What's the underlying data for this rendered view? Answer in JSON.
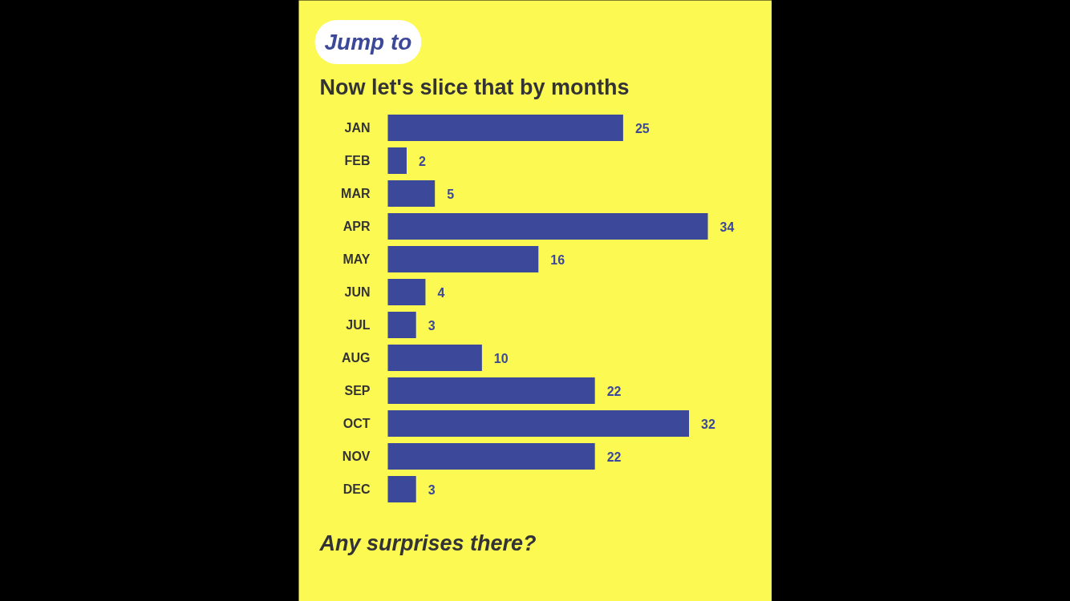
{
  "chart_data": {
    "type": "bar",
    "orientation": "horizontal",
    "title": "Now let's slice that by months",
    "annotations": [
      "Jump to",
      "Any surprises there?"
    ],
    "categories": [
      "JAN",
      "FEB",
      "MAR",
      "APR",
      "MAY",
      "JUN",
      "JUL",
      "AUG",
      "SEP",
      "OCT",
      "NOV",
      "DEC"
    ],
    "values": [
      25,
      2,
      5,
      34,
      16,
      4,
      3,
      10,
      22,
      32,
      22,
      3
    ],
    "color": "#3c4899",
    "data_labels": true
  }
}
